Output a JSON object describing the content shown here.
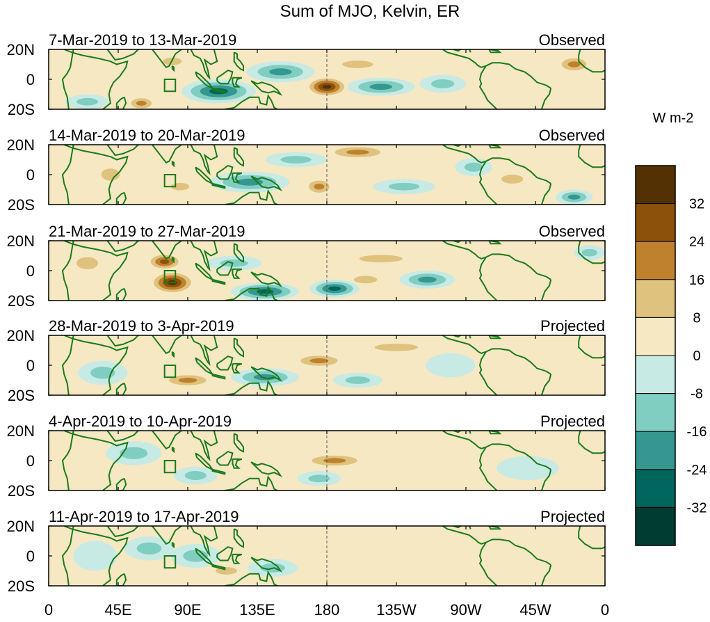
{
  "chart_data": {
    "type": "heatmap",
    "title": "Sum of MJO, Kelvin, ER",
    "units": "W m-2",
    "x_tick_labels": [
      "0",
      "45E",
      "90E",
      "135E",
      "180",
      "135W",
      "90W",
      "45W",
      "0"
    ],
    "x_tick_lons": [
      0,
      45,
      90,
      135,
      180,
      225,
      270,
      315,
      360
    ],
    "x_range": [
      0,
      360
    ],
    "y_tick_labels": [
      "20N",
      "0",
      "20S"
    ],
    "y_tick_lats": [
      20,
      0,
      -20
    ],
    "y_range": [
      -20,
      20
    ],
    "colorbar": {
      "levels": [
        32,
        24,
        16,
        8,
        0,
        -8,
        -16,
        -24,
        -32
      ],
      "level_labels": [
        "32",
        "24",
        "16",
        "8",
        "0",
        "-8",
        "-16",
        "-24",
        "-32"
      ],
      "colors": [
        "#543005",
        "#8c510a",
        "#bf812d",
        "#dfc27d",
        "#f6e8c3",
        "#c7eae5",
        "#80cdc1",
        "#35978f",
        "#01665e",
        "#003c30"
      ]
    },
    "panels": [
      {
        "period": "7-Mar-2019 to 13-Mar-2019",
        "status": "Observed",
        "anomalies": [
          {
            "lon": 180,
            "lat": -5,
            "val": 36,
            "rx": 14,
            "ry": 7
          },
          {
            "lon": 60,
            "lat": -16,
            "val": 20,
            "rx": 10,
            "ry": 5
          },
          {
            "lon": 110,
            "lat": -8,
            "val": -26,
            "rx": 24,
            "ry": 8
          },
          {
            "lon": 150,
            "lat": 5,
            "val": -22,
            "rx": 22,
            "ry": 7
          },
          {
            "lon": 215,
            "lat": -5,
            "val": -24,
            "rx": 22,
            "ry": 6
          },
          {
            "lon": 255,
            "lat": -3,
            "val": -14,
            "rx": 15,
            "ry": 6
          },
          {
            "lon": 340,
            "lat": 10,
            "val": 18,
            "rx": 12,
            "ry": 6
          },
          {
            "lon": 200,
            "lat": 10,
            "val": 10,
            "rx": 20,
            "ry": 5
          },
          {
            "lon": 25,
            "lat": -15,
            "val": -14,
            "rx": 14,
            "ry": 5
          },
          {
            "lon": 80,
            "lat": 12,
            "val": 10,
            "rx": 12,
            "ry": 5
          }
        ]
      },
      {
        "period": "14-Mar-2019 to 20-Mar-2019",
        "status": "Observed",
        "anomalies": [
          {
            "lon": 175,
            "lat": -8,
            "val": 22,
            "rx": 10,
            "ry": 6
          },
          {
            "lon": 200,
            "lat": 15,
            "val": 18,
            "rx": 22,
            "ry": 5
          },
          {
            "lon": 130,
            "lat": -5,
            "val": -22,
            "rx": 26,
            "ry": 7
          },
          {
            "lon": 160,
            "lat": 10,
            "val": -14,
            "rx": 20,
            "ry": 5
          },
          {
            "lon": 85,
            "lat": -8,
            "val": 16,
            "rx": 12,
            "ry": 5
          },
          {
            "lon": 40,
            "lat": 0,
            "val": 14,
            "rx": 12,
            "ry": 8
          },
          {
            "lon": 300,
            "lat": -3,
            "val": 16,
            "rx": 14,
            "ry": 6
          },
          {
            "lon": 275,
            "lat": 5,
            "val": -14,
            "rx": 12,
            "ry": 6
          },
          {
            "lon": 340,
            "lat": -15,
            "val": -20,
            "rx": 12,
            "ry": 5
          },
          {
            "lon": 230,
            "lat": -8,
            "val": -10,
            "rx": 20,
            "ry": 5
          }
        ]
      },
      {
        "period": "21-Mar-2019 to 27-Mar-2019",
        "status": "Observed",
        "anomalies": [
          {
            "lon": 80,
            "lat": -8,
            "val": 36,
            "rx": 15,
            "ry": 8
          },
          {
            "lon": 75,
            "lat": 6,
            "val": 26,
            "rx": 12,
            "ry": 6
          },
          {
            "lon": 140,
            "lat": -14,
            "val": -28,
            "rx": 22,
            "ry": 6
          },
          {
            "lon": 185,
            "lat": -12,
            "val": -26,
            "rx": 16,
            "ry": 6
          },
          {
            "lon": 215,
            "lat": 8,
            "val": 14,
            "rx": 28,
            "ry": 5
          },
          {
            "lon": 205,
            "lat": -6,
            "val": 14,
            "rx": 15,
            "ry": 5
          },
          {
            "lon": 245,
            "lat": -6,
            "val": -18,
            "rx": 18,
            "ry": 6
          },
          {
            "lon": 25,
            "lat": 5,
            "val": 12,
            "rx": 14,
            "ry": 8
          },
          {
            "lon": 350,
            "lat": 12,
            "val": -14,
            "rx": 10,
            "ry": 5
          },
          {
            "lon": 120,
            "lat": 5,
            "val": -10,
            "rx": 18,
            "ry": 5
          }
        ]
      },
      {
        "period": "28-Mar-2019 to 3-Apr-2019",
        "status": "Projected",
        "anomalies": [
          {
            "lon": 175,
            "lat": 3,
            "val": 18,
            "rx": 18,
            "ry": 5
          },
          {
            "lon": 90,
            "lat": -10,
            "val": 18,
            "rx": 18,
            "ry": 5
          },
          {
            "lon": 140,
            "lat": -8,
            "val": -18,
            "rx": 22,
            "ry": 6
          },
          {
            "lon": 225,
            "lat": 12,
            "val": 10,
            "rx": 28,
            "ry": 5
          },
          {
            "lon": 200,
            "lat": -10,
            "val": -12,
            "rx": 16,
            "ry": 5
          },
          {
            "lon": 35,
            "lat": -5,
            "val": -10,
            "rx": 16,
            "ry": 8
          },
          {
            "lon": 300,
            "lat": 0,
            "val": 8,
            "rx": 16,
            "ry": 6
          },
          {
            "lon": 260,
            "lat": 0,
            "val": -8,
            "rx": 16,
            "ry": 8
          }
        ]
      },
      {
        "period": "4-Apr-2019 to 10-Apr-2019",
        "status": "Projected",
        "anomalies": [
          {
            "lon": 185,
            "lat": 0,
            "val": 18,
            "rx": 22,
            "ry": 5
          },
          {
            "lon": 175,
            "lat": -12,
            "val": -16,
            "rx": 14,
            "ry": 5
          },
          {
            "lon": 95,
            "lat": -10,
            "val": -14,
            "rx": 14,
            "ry": 6
          },
          {
            "lon": 55,
            "lat": 5,
            "val": -10,
            "rx": 18,
            "ry": 8
          },
          {
            "lon": 230,
            "lat": 8,
            "val": 8,
            "rx": 30,
            "ry": 5
          },
          {
            "lon": 130,
            "lat": -4,
            "val": 8,
            "rx": 16,
            "ry": 5
          },
          {
            "lon": 310,
            "lat": -5,
            "val": -8,
            "rx": 20,
            "ry": 8
          }
        ]
      },
      {
        "period": "11-Apr-2019 to 17-Apr-2019",
        "status": "Projected",
        "anomalies": [
          {
            "lon": 95,
            "lat": 0,
            "val": -12,
            "rx": 16,
            "ry": 8
          },
          {
            "lon": 65,
            "lat": 5,
            "val": -10,
            "rx": 16,
            "ry": 8
          },
          {
            "lon": 145,
            "lat": -8,
            "val": -10,
            "rx": 16,
            "ry": 6
          },
          {
            "lon": 200,
            "lat": 5,
            "val": 8,
            "rx": 28,
            "ry": 6
          },
          {
            "lon": 115,
            "lat": -10,
            "val": 9,
            "rx": 14,
            "ry": 5
          },
          {
            "lon": 30,
            "lat": 0,
            "val": -8,
            "rx": 14,
            "ry": 10
          }
        ]
      }
    ]
  }
}
